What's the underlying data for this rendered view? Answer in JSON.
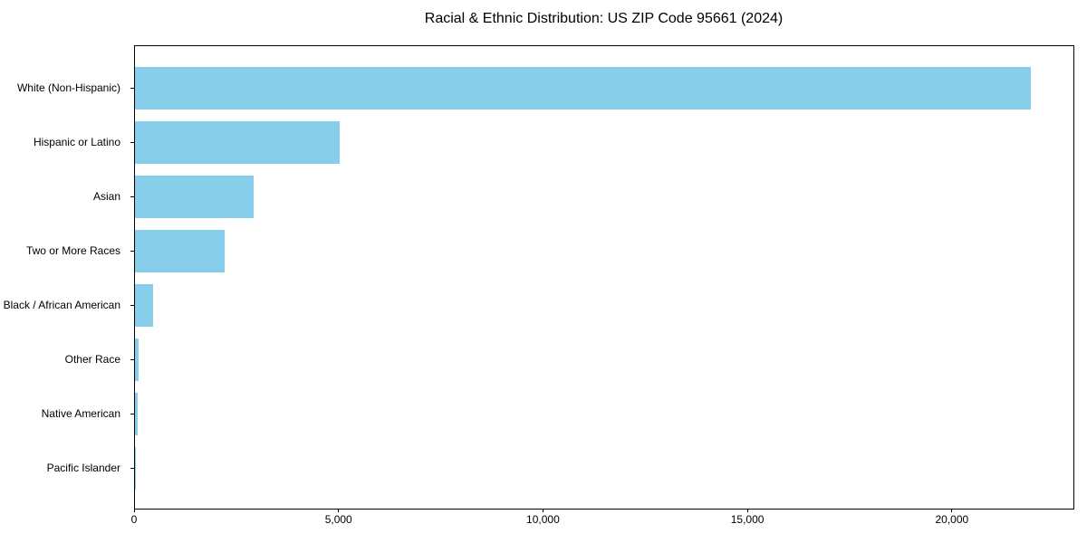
{
  "chart_data": {
    "type": "bar",
    "orientation": "horizontal",
    "title": "Racial & Ethnic Distribution: US ZIP Code 95661 (2024)",
    "categories": [
      "White (Non-Hispanic)",
      "Hispanic or Latino",
      "Asian",
      "Two or More Races",
      "Black / African American",
      "Other Race",
      "Native American",
      "Pacific Islander"
    ],
    "values": [
      21900,
      5000,
      2900,
      2200,
      440,
      90,
      60,
      10
    ],
    "xlabel": "",
    "ylabel": "",
    "xlim": [
      0,
      22950
    ],
    "x_ticks": [
      0,
      5000,
      10000,
      15000,
      20000
    ],
    "x_tick_labels": [
      "0",
      "5,000",
      "10,000",
      "15,000",
      "20,000"
    ],
    "bar_color": "#87CEEB",
    "axis_color": "#000000",
    "grid": false,
    "legend": false
  }
}
